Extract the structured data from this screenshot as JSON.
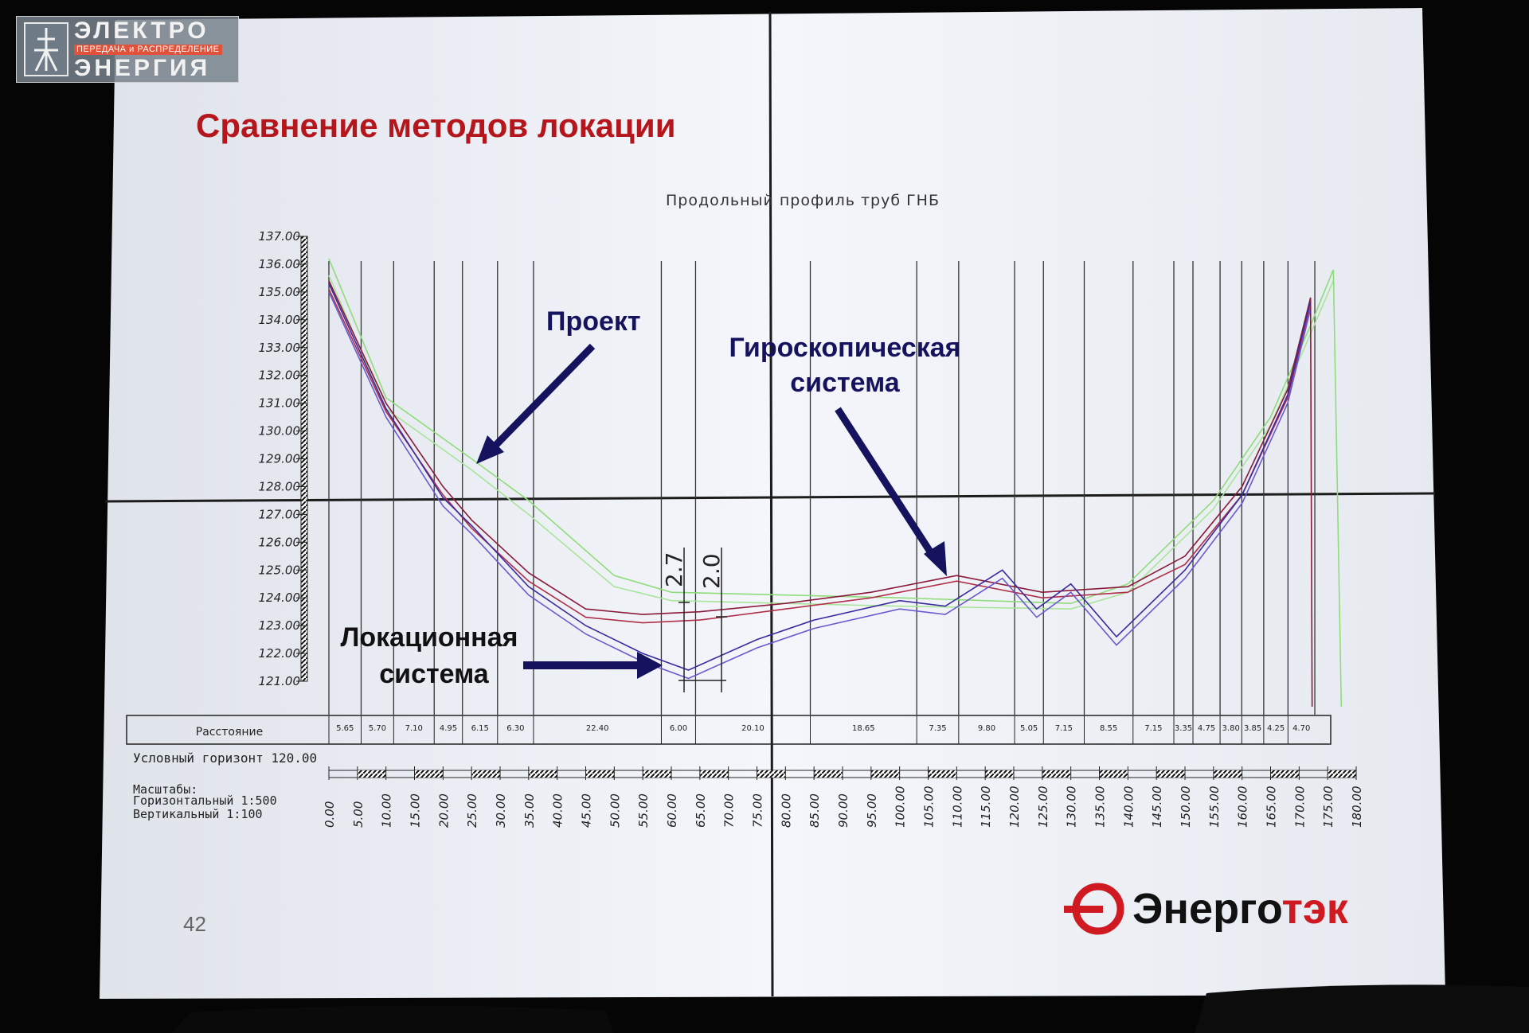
{
  "watermark": {
    "line1": "ЭЛЕКТРО",
    "line2": "ПЕРЕДАЧА и РАСПРЕДЕЛЕНИЕ",
    "line3": "ЭНЕРГИЯ",
    "logo_letters": "ЭЕ"
  },
  "slide": {
    "title": "Сравнение методов локации",
    "page_number": "42",
    "brand": {
      "part1": "Энерго",
      "part2": "тэк"
    }
  },
  "drawing": {
    "subtitle": "Продольный профиль труб ГНБ",
    "annotations": {
      "project": "Проект",
      "gyro_line1": "Гироскопическая",
      "gyro_line2": "система",
      "loc_line1": "Локационная",
      "loc_line2": "система"
    },
    "dimension_labels": [
      "2.7",
      "2.0"
    ],
    "distance_label": "Расстояние",
    "horizon_label": "Условный горизонт 120.00",
    "scales_title": "Масштабы:",
    "scale_horizontal": "Горизонтальный 1:500",
    "scale_vertical": "Вертикальный 1:100"
  },
  "chart_data": {
    "type": "line",
    "y_ticks": [
      "137.00",
      "136.00",
      "135.00",
      "134.00",
      "133.00",
      "132.00",
      "131.00",
      "130.00",
      "129.00",
      "128.00",
      "127.00",
      "126.00",
      "125.00",
      "124.00",
      "123.00",
      "122.00",
      "121.00"
    ],
    "x_ticks": [
      "0.00",
      "5.00",
      "10.00",
      "15.00",
      "20.00",
      "25.00",
      "30.00",
      "35.00",
      "40.00",
      "45.00",
      "50.00",
      "55.00",
      "60.00",
      "65.00",
      "70.00",
      "75.00",
      "80.00",
      "85.00",
      "90.00",
      "95.00",
      "100.00",
      "105.00",
      "110.00",
      "115.00",
      "120.00",
      "125.00",
      "130.00",
      "135.00",
      "140.00",
      "145.00",
      "150.00",
      "155.00",
      "160.00",
      "165.00",
      "170.00",
      "175.00",
      "180.00"
    ],
    "ylim": [
      121,
      137
    ],
    "xlim": [
      0,
      180
    ],
    "distances": [
      "5.65",
      "5.70",
      "7.10",
      "4.95",
      "6.15",
      "6.30",
      "22.40",
      "6.00",
      "20.10",
      "18.65",
      "7.35",
      "9.80",
      "5.05",
      "7.15",
      "8.55",
      "7.15",
      "3.35",
      "4.75",
      "3.80",
      "3.85",
      "4.25",
      "4.70"
    ],
    "series": [
      {
        "color": "#8fdc7a",
        "points": [
          [
            0,
            136.2
          ],
          [
            10,
            131.2
          ],
          [
            25,
            129
          ],
          [
            35,
            127.5
          ],
          [
            50,
            124.8
          ],
          [
            60,
            124.2
          ],
          [
            80,
            124.1
          ],
          [
            100,
            124.0
          ],
          [
            130,
            123.8
          ],
          [
            140,
            124.5
          ],
          [
            155,
            127.5
          ],
          [
            165,
            130.5
          ],
          [
            172,
            133.8
          ],
          [
            176,
            135.8
          ]
        ]
      },
      {
        "color": "#a9e59a",
        "points": [
          [
            0,
            135.6
          ],
          [
            10,
            130.8
          ],
          [
            25,
            128.6
          ],
          [
            35,
            127.0
          ],
          [
            50,
            124.4
          ],
          [
            60,
            123.9
          ],
          [
            80,
            123.8
          ],
          [
            100,
            123.7
          ],
          [
            130,
            123.6
          ],
          [
            140,
            124.2
          ],
          [
            155,
            127.2
          ],
          [
            165,
            130.2
          ],
          [
            172,
            133.5
          ],
          [
            176,
            135.4
          ]
        ]
      },
      {
        "color": "#8a1a3a",
        "points": [
          [
            0,
            135.4
          ],
          [
            10,
            131
          ],
          [
            20,
            128
          ],
          [
            25,
            126.8
          ],
          [
            35,
            124.9
          ],
          [
            45,
            123.6
          ],
          [
            55,
            123.4
          ],
          [
            65,
            123.5
          ],
          [
            80,
            123.8
          ],
          [
            95,
            124.2
          ],
          [
            110,
            124.8
          ],
          [
            125,
            124.2
          ],
          [
            140,
            124.4
          ],
          [
            150,
            125.5
          ],
          [
            160,
            128
          ],
          [
            168,
            131.5
          ],
          [
            172,
            134.8
          ]
        ]
      },
      {
        "color": "#b0304a",
        "points": [
          [
            0,
            135.1
          ],
          [
            10,
            130.7
          ],
          [
            20,
            127.7
          ],
          [
            25,
            126.5
          ],
          [
            35,
            124.6
          ],
          [
            45,
            123.3
          ],
          [
            55,
            123.1
          ],
          [
            65,
            123.2
          ],
          [
            80,
            123.6
          ],
          [
            95,
            124.0
          ],
          [
            110,
            124.6
          ],
          [
            125,
            124.0
          ],
          [
            140,
            124.2
          ],
          [
            150,
            125.2
          ],
          [
            160,
            127.7
          ],
          [
            168,
            131.2
          ],
          [
            172,
            134.5
          ]
        ]
      },
      {
        "color": "#3a2aa0",
        "points": [
          [
            0,
            135.3
          ],
          [
            10,
            130.8
          ],
          [
            20,
            127.6
          ],
          [
            25,
            126.6
          ],
          [
            35,
            124.4
          ],
          [
            45,
            123.0
          ],
          [
            55,
            122.0
          ],
          [
            63,
            121.4
          ],
          [
            75,
            122.5
          ],
          [
            85,
            123.2
          ],
          [
            100,
            123.9
          ],
          [
            108,
            123.7
          ],
          [
            118,
            125.0
          ],
          [
            124,
            123.6
          ],
          [
            130,
            124.5
          ],
          [
            138,
            122.6
          ],
          [
            150,
            125.0
          ],
          [
            160,
            127.7
          ],
          [
            168,
            131.3
          ],
          [
            172,
            134.7
          ]
        ]
      },
      {
        "color": "#6a5ad0",
        "points": [
          [
            0,
            135.0
          ],
          [
            10,
            130.5
          ],
          [
            20,
            127.3
          ],
          [
            25,
            126.3
          ],
          [
            35,
            124.1
          ],
          [
            45,
            122.7
          ],
          [
            55,
            121.7
          ],
          [
            63,
            121.1
          ],
          [
            75,
            122.2
          ],
          [
            85,
            122.9
          ],
          [
            100,
            123.6
          ],
          [
            108,
            123.4
          ],
          [
            118,
            124.7
          ],
          [
            124,
            123.3
          ],
          [
            130,
            124.2
          ],
          [
            138,
            122.3
          ],
          [
            150,
            124.7
          ],
          [
            160,
            127.4
          ],
          [
            168,
            131.0
          ],
          [
            172,
            134.4
          ]
        ]
      }
    ]
  }
}
